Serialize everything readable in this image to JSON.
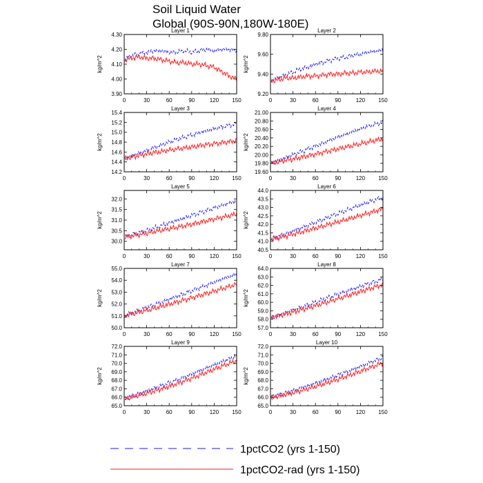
{
  "title_line1": "Soil Liquid Water",
  "title_line2": "Global (90S-90N,180W-180E)",
  "ylabel": "kg/m^2",
  "colors": {
    "1pctCO2": "#1a1aff",
    "1pctCO2-rad": "#ff1a1a",
    "axis": "#000000"
  },
  "legend": [
    {
      "label": "1pctCO2 (yrs 1-150)",
      "style": "dashed",
      "color": "#1a1aff"
    },
    {
      "label": "1pctCO2-rad (yrs 1-150)",
      "style": "solid",
      "color": "#ff1a1a"
    }
  ],
  "chart_data": [
    {
      "type": "line",
      "title": "Layer 1",
      "x_ticks": [
        "0",
        "30",
        "60",
        "90",
        "120",
        "150"
      ],
      "xlim": [
        0,
        150
      ],
      "ylim": [
        3.9,
        4.3
      ],
      "y_ticks": [
        "3.90",
        "4.00",
        "4.10",
        "4.20",
        "4.30"
      ],
      "series": [
        {
          "name": "1pctCO2",
          "x": [
            0,
            10,
            20,
            30,
            40,
            50,
            60,
            70,
            80,
            90,
            100,
            110,
            120,
            130,
            140,
            150
          ],
          "y": [
            4.13,
            4.16,
            4.17,
            4.18,
            4.19,
            4.19,
            4.18,
            4.18,
            4.19,
            4.18,
            4.19,
            4.2,
            4.19,
            4.2,
            4.2,
            4.19
          ]
        },
        {
          "name": "1pctCO2-rad",
          "x": [
            0,
            10,
            20,
            30,
            40,
            50,
            60,
            70,
            80,
            90,
            100,
            110,
            120,
            130,
            140,
            150
          ],
          "y": [
            4.13,
            4.14,
            4.15,
            4.14,
            4.14,
            4.13,
            4.12,
            4.11,
            4.11,
            4.1,
            4.1,
            4.09,
            4.08,
            4.05,
            4.02,
            4.0
          ]
        }
      ]
    },
    {
      "type": "line",
      "title": "Layer 2",
      "x_ticks": [
        "0",
        "30",
        "60",
        "90",
        "120",
        "150"
      ],
      "xlim": [
        0,
        150
      ],
      "ylim": [
        9.2,
        9.8
      ],
      "y_ticks": [
        "9.20",
        "9.40",
        "9.60",
        "9.80"
      ],
      "series": [
        {
          "name": "1pctCO2",
          "x": [
            0,
            10,
            20,
            30,
            40,
            50,
            60,
            70,
            80,
            90,
            100,
            110,
            120,
            130,
            140,
            150
          ],
          "y": [
            9.33,
            9.36,
            9.39,
            9.42,
            9.45,
            9.47,
            9.5,
            9.52,
            9.54,
            9.56,
            9.57,
            9.59,
            9.6,
            9.62,
            9.63,
            9.64
          ]
        },
        {
          "name": "1pctCO2-rad",
          "x": [
            0,
            10,
            20,
            30,
            40,
            50,
            60,
            70,
            80,
            90,
            100,
            110,
            120,
            130,
            140,
            150
          ],
          "y": [
            9.33,
            9.34,
            9.36,
            9.36,
            9.37,
            9.38,
            9.38,
            9.39,
            9.4,
            9.4,
            9.41,
            9.41,
            9.42,
            9.42,
            9.43,
            9.43
          ]
        }
      ]
    },
    {
      "type": "line",
      "title": "Layer 3",
      "x_ticks": [
        "0",
        "30",
        "60",
        "90",
        "120",
        "150"
      ],
      "xlim": [
        0,
        150
      ],
      "ylim": [
        14.2,
        15.4
      ],
      "y_ticks": [
        "14.2",
        "14.4",
        "14.6",
        "14.8",
        "15.0",
        "15.2",
        "15.4"
      ],
      "series": [
        {
          "name": "1pctCO2",
          "x": [
            0,
            10,
            20,
            30,
            40,
            50,
            60,
            70,
            80,
            90,
            100,
            110,
            120,
            130,
            140,
            150
          ],
          "y": [
            14.47,
            14.52,
            14.58,
            14.63,
            14.69,
            14.74,
            14.8,
            14.85,
            14.9,
            14.94,
            14.99,
            15.03,
            15.07,
            15.11,
            15.14,
            15.17
          ]
        },
        {
          "name": "1pctCO2-rad",
          "x": [
            0,
            10,
            20,
            30,
            40,
            50,
            60,
            70,
            80,
            90,
            100,
            110,
            120,
            130,
            140,
            150
          ],
          "y": [
            14.47,
            14.5,
            14.53,
            14.56,
            14.59,
            14.61,
            14.64,
            14.66,
            14.68,
            14.7,
            14.73,
            14.75,
            14.77,
            14.79,
            14.81,
            14.83
          ]
        }
      ]
    },
    {
      "type": "line",
      "title": "Layer 4",
      "x_ticks": [
        "0",
        "30",
        "60",
        "90",
        "120",
        "150"
      ],
      "xlim": [
        0,
        150
      ],
      "ylim": [
        19.6,
        21.0
      ],
      "y_ticks": [
        "19.60",
        "19.80",
        "20.00",
        "20.20",
        "20.40",
        "20.60",
        "20.80",
        "21.00"
      ],
      "series": [
        {
          "name": "1pctCO2",
          "x": [
            0,
            10,
            20,
            30,
            40,
            50,
            60,
            70,
            80,
            90,
            100,
            110,
            120,
            130,
            140,
            150
          ],
          "y": [
            19.8,
            19.86,
            19.93,
            20.0,
            20.07,
            20.14,
            20.21,
            20.28,
            20.35,
            20.42,
            20.48,
            20.55,
            20.61,
            20.67,
            20.72,
            20.77
          ]
        },
        {
          "name": "1pctCO2-rad",
          "x": [
            0,
            10,
            20,
            30,
            40,
            50,
            60,
            70,
            80,
            90,
            100,
            110,
            120,
            130,
            140,
            150
          ],
          "y": [
            19.8,
            19.83,
            19.87,
            19.9,
            19.94,
            19.98,
            20.02,
            20.06,
            20.1,
            20.14,
            20.18,
            20.22,
            20.26,
            20.3,
            20.34,
            20.38
          ]
        }
      ]
    },
    {
      "type": "line",
      "title": "Layer 5",
      "x_ticks": [
        "0",
        "30",
        "60",
        "90",
        "120",
        "150"
      ],
      "xlim": [
        0,
        150
      ],
      "ylim": [
        29.6,
        32.4
      ],
      "y_ticks": [
        "30.0",
        "30.5",
        "31.0",
        "31.5",
        "32.0"
      ],
      "series": [
        {
          "name": "1pctCO2",
          "x": [
            0,
            10,
            20,
            30,
            40,
            50,
            60,
            70,
            80,
            90,
            100,
            110,
            120,
            130,
            140,
            150
          ],
          "y": [
            30.2,
            30.3,
            30.4,
            30.5,
            30.62,
            30.74,
            30.86,
            30.98,
            31.1,
            31.22,
            31.34,
            31.46,
            31.58,
            31.7,
            31.8,
            31.9
          ]
        },
        {
          "name": "1pctCO2-rad",
          "x": [
            0,
            10,
            20,
            30,
            40,
            50,
            60,
            70,
            80,
            90,
            100,
            110,
            120,
            130,
            140,
            150
          ],
          "y": [
            30.2,
            30.26,
            30.32,
            30.38,
            30.45,
            30.52,
            30.59,
            30.66,
            30.73,
            30.81,
            30.89,
            30.97,
            31.05,
            31.13,
            31.21,
            31.3
          ]
        }
      ]
    },
    {
      "type": "line",
      "title": "Layer 6",
      "x_ticks": [
        "0",
        "30",
        "60",
        "90",
        "120",
        "150"
      ],
      "xlim": [
        0,
        150
      ],
      "ylim": [
        40.5,
        44.0
      ],
      "y_ticks": [
        "40.5",
        "41.0",
        "41.5",
        "42.0",
        "42.5",
        "43.0",
        "43.5",
        "44.0"
      ],
      "series": [
        {
          "name": "1pctCO2",
          "x": [
            0,
            10,
            20,
            30,
            40,
            50,
            60,
            70,
            80,
            90,
            100,
            110,
            120,
            130,
            140,
            150
          ],
          "y": [
            41.1,
            41.27,
            41.44,
            41.61,
            41.78,
            41.95,
            42.12,
            42.29,
            42.46,
            42.63,
            42.8,
            42.97,
            43.14,
            43.3,
            43.45,
            43.6
          ]
        },
        {
          "name": "1pctCO2-rad",
          "x": [
            0,
            10,
            20,
            30,
            40,
            50,
            60,
            70,
            80,
            90,
            100,
            110,
            120,
            130,
            140,
            150
          ],
          "y": [
            41.1,
            41.2,
            41.31,
            41.42,
            41.54,
            41.66,
            41.78,
            41.9,
            42.02,
            42.14,
            42.26,
            42.39,
            42.52,
            42.65,
            42.78,
            42.92
          ]
        }
      ]
    },
    {
      "type": "line",
      "title": "Layer 7",
      "x_ticks": [
        "0",
        "30",
        "60",
        "90",
        "120",
        "150"
      ],
      "xlim": [
        0,
        150
      ],
      "ylim": [
        50.0,
        55.0
      ],
      "y_ticks": [
        "50.0",
        "51.0",
        "52.0",
        "53.0",
        "54.0",
        "55.0"
      ],
      "series": [
        {
          "name": "1pctCO2",
          "x": [
            0,
            10,
            20,
            30,
            40,
            50,
            60,
            70,
            80,
            90,
            100,
            110,
            120,
            130,
            140,
            150
          ],
          "y": [
            51.0,
            51.22,
            51.45,
            51.68,
            51.92,
            52.16,
            52.4,
            52.64,
            52.88,
            53.12,
            53.36,
            53.6,
            53.84,
            54.08,
            54.3,
            54.5
          ]
        },
        {
          "name": "1pctCO2-rad",
          "x": [
            0,
            10,
            20,
            30,
            40,
            50,
            60,
            70,
            80,
            90,
            100,
            110,
            120,
            130,
            140,
            150
          ],
          "y": [
            51.0,
            51.15,
            51.3,
            51.46,
            51.63,
            51.8,
            51.98,
            52.16,
            52.34,
            52.52,
            52.71,
            52.9,
            53.09,
            53.28,
            53.47,
            53.66
          ]
        }
      ]
    },
    {
      "type": "line",
      "title": "Layer 8",
      "x_ticks": [
        "0",
        "30",
        "60",
        "90",
        "120",
        "150"
      ],
      "xlim": [
        0,
        150
      ],
      "ylim": [
        57.0,
        64.0
      ],
      "y_ticks": [
        "57.0",
        "58.0",
        "59.0",
        "60.0",
        "61.0",
        "62.0",
        "63.0",
        "64.0"
      ],
      "series": [
        {
          "name": "1pctCO2",
          "x": [
            0,
            10,
            20,
            30,
            40,
            50,
            60,
            70,
            80,
            90,
            100,
            110,
            120,
            130,
            140,
            150
          ],
          "y": [
            58.2,
            58.49,
            58.79,
            59.09,
            59.4,
            59.71,
            60.02,
            60.33,
            60.64,
            60.95,
            61.26,
            61.57,
            61.88,
            62.18,
            62.46,
            62.72
          ]
        },
        {
          "name": "1pctCO2-rad",
          "x": [
            0,
            10,
            20,
            30,
            40,
            50,
            60,
            70,
            80,
            90,
            100,
            110,
            120,
            130,
            140,
            150
          ],
          "y": [
            58.2,
            58.4,
            58.62,
            58.85,
            59.09,
            59.34,
            59.6,
            59.87,
            60.14,
            60.42,
            60.7,
            60.98,
            61.27,
            61.56,
            61.84,
            62.1
          ]
        }
      ]
    },
    {
      "type": "line",
      "title": "Layer 9",
      "x_ticks": [
        "0",
        "30",
        "60",
        "90",
        "120",
        "150"
      ],
      "xlim": [
        0,
        150
      ],
      "ylim": [
        65.0,
        72.0
      ],
      "y_ticks": [
        "65.0",
        "66.0",
        "67.0",
        "68.0",
        "69.0",
        "70.0",
        "71.0",
        "72.0"
      ],
      "series": [
        {
          "name": "1pctCO2",
          "x": [
            0,
            10,
            20,
            30,
            40,
            50,
            60,
            70,
            80,
            90,
            100,
            110,
            120,
            130,
            140,
            150
          ],
          "y": [
            65.8,
            66.09,
            66.4,
            66.71,
            67.03,
            67.36,
            67.7,
            68.04,
            68.39,
            68.74,
            69.1,
            69.46,
            69.82,
            70.18,
            70.52,
            70.85
          ]
        },
        {
          "name": "1pctCO2-rad",
          "x": [
            0,
            10,
            20,
            30,
            40,
            50,
            60,
            70,
            80,
            90,
            100,
            110,
            120,
            130,
            140,
            150
          ],
          "y": [
            65.8,
            66.0,
            66.22,
            66.46,
            66.72,
            67.0,
            67.29,
            67.6,
            67.92,
            68.25,
            68.59,
            68.94,
            69.29,
            69.64,
            69.98,
            70.3
          ]
        }
      ]
    },
    {
      "type": "line",
      "title": "Layer 10",
      "x_ticks": [
        "0",
        "30",
        "60",
        "90",
        "120",
        "150"
      ],
      "xlim": [
        0,
        150
      ],
      "ylim": [
        65.0,
        72.0
      ],
      "y_ticks": [
        "65.0",
        "66.0",
        "67.0",
        "68.0",
        "69.0",
        "70.0",
        "71.0",
        "72.0"
      ],
      "series": [
        {
          "name": "1pctCO2",
          "x": [
            0,
            10,
            20,
            30,
            40,
            50,
            60,
            70,
            80,
            90,
            100,
            110,
            120,
            130,
            140,
            150
          ],
          "y": [
            66.0,
            66.24,
            66.5,
            66.77,
            67.05,
            67.34,
            67.64,
            67.95,
            68.27,
            68.6,
            68.94,
            69.29,
            69.64,
            70.0,
            70.35,
            70.7
          ]
        },
        {
          "name": "1pctCO2-rad",
          "x": [
            0,
            10,
            20,
            30,
            40,
            50,
            60,
            70,
            80,
            90,
            100,
            110,
            120,
            130,
            140,
            150
          ],
          "y": [
            66.0,
            66.15,
            66.33,
            66.53,
            66.76,
            67.0,
            67.26,
            67.53,
            67.82,
            68.12,
            68.43,
            68.75,
            69.08,
            69.41,
            69.74,
            70.05
          ]
        }
      ]
    }
  ]
}
